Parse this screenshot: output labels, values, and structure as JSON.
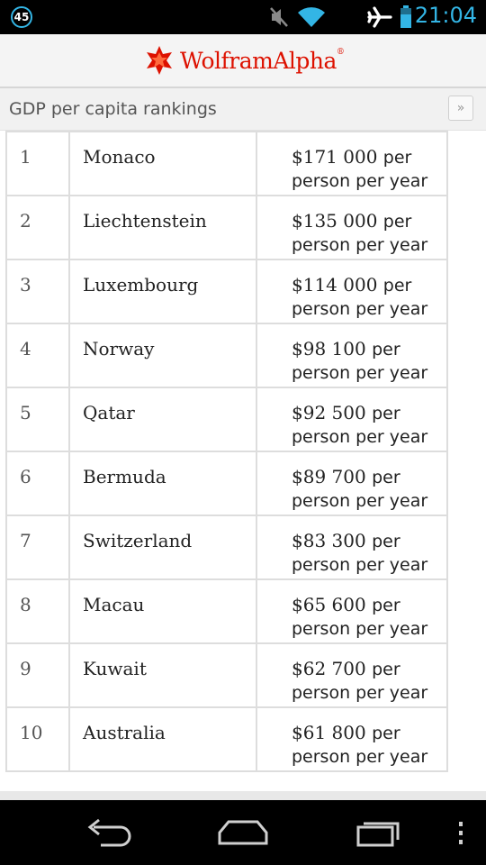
{
  "status_bar": {
    "notification_count": "45",
    "time": "21:04",
    "icons": [
      "notification-badge-icon",
      "mute-icon",
      "wifi-icon",
      "airplane-icon",
      "battery-icon"
    ],
    "accent_color": "#33b5e5"
  },
  "header": {
    "logo_text": "WolframAlpha",
    "logo_tm": "®",
    "brand_color": "#dd1100"
  },
  "pod": {
    "title": "GDP per capita rankings",
    "more_label": "»"
  },
  "rankings": [
    {
      "rank": "1",
      "country": "Monaco",
      "value": "$171 000",
      "unit1": "per",
      "unit2": "person per year"
    },
    {
      "rank": "2",
      "country": "Liechtenstein",
      "value": "$135 000",
      "unit1": "per",
      "unit2": "person per year"
    },
    {
      "rank": "3",
      "country": "Luxembourg",
      "value": "$114 000",
      "unit1": "per",
      "unit2": "person per year"
    },
    {
      "rank": "4",
      "country": "Norway",
      "value": "$98 100",
      "unit1": "per",
      "unit2": "person per year"
    },
    {
      "rank": "5",
      "country": "Qatar",
      "value": "$92 500",
      "unit1": "per",
      "unit2": "person per year"
    },
    {
      "rank": "6",
      "country": "Bermuda",
      "value": "$89 700",
      "unit1": "per",
      "unit2": "person per year"
    },
    {
      "rank": "7",
      "country": "Switzerland",
      "value": "$83 300",
      "unit1": "per",
      "unit2": "person per year"
    },
    {
      "rank": "8",
      "country": "Macau",
      "value": "$65 600",
      "unit1": "per",
      "unit2": "person per year"
    },
    {
      "rank": "9",
      "country": "Kuwait",
      "value": "$62 700",
      "unit1": "per",
      "unit2": "person per year"
    },
    {
      "rank": "10",
      "country": "Australia",
      "value": "$61 800",
      "unit1": "per",
      "unit2": "person per year"
    }
  ],
  "nav_bar": {
    "icons": [
      "back-icon",
      "home-icon",
      "recent-apps-icon",
      "overflow-menu-icon"
    ]
  }
}
